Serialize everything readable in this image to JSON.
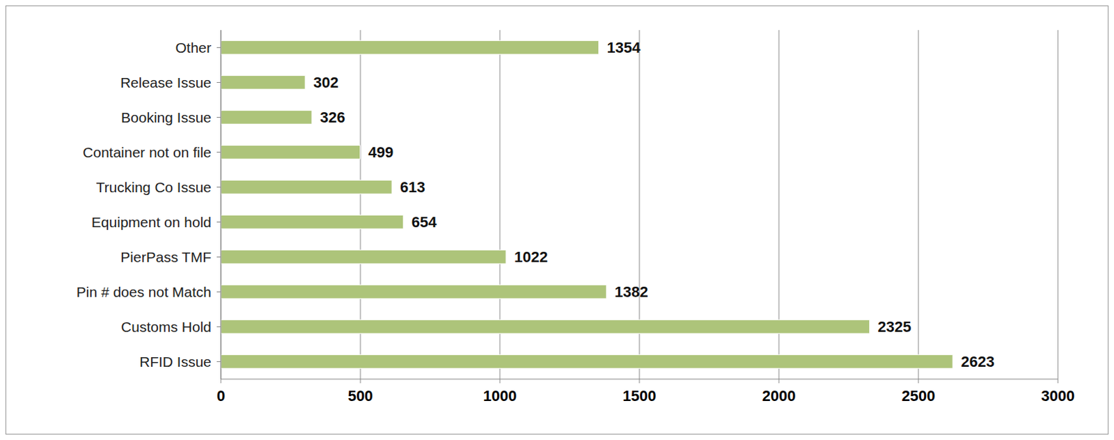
{
  "chart_data": {
    "type": "bar",
    "orientation": "horizontal",
    "categories": [
      "Other",
      "Release Issue",
      "Booking Issue",
      "Container not on file",
      "Trucking  Co Issue",
      "Equipment on hold",
      "PierPass TMF",
      "Pin # does not Match",
      "Customs Hold",
      "RFID Issue"
    ],
    "values": [
      1354,
      302,
      326,
      499,
      613,
      654,
      1022,
      1382,
      2325,
      2623
    ],
    "color": "#adc47a",
    "xlim": [
      0,
      3000
    ],
    "xticks": [
      0,
      500,
      1000,
      1500,
      2000,
      2500,
      3000
    ],
    "grid": true,
    "data_labels": true
  }
}
